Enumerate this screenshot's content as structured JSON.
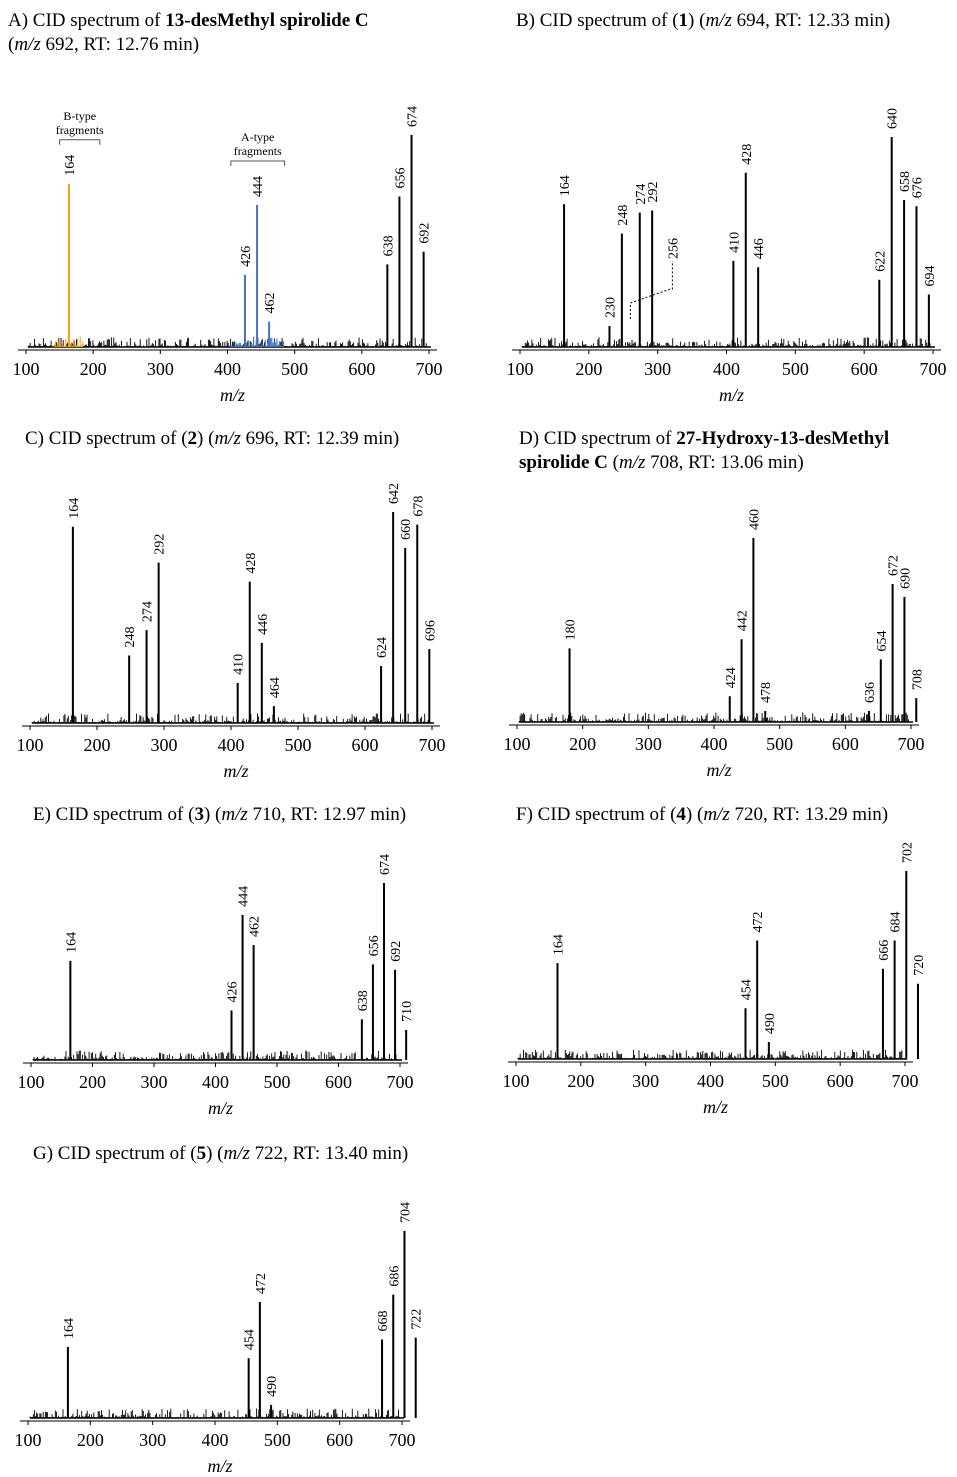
{
  "chart_data": [
    {
      "id": "A",
      "type": "bar",
      "title": {
        "prefix": "A) CID spectrum of ",
        "compound": "13-desMethyl spirolide C",
        "mz_prefix": "(",
        "mz_label": "m/z",
        "mz_rest": " 692, RT: 12.76 min)"
      },
      "xlabel": "m/z",
      "xticks": [
        100,
        200,
        300,
        400,
        500,
        600,
        700
      ],
      "xlim": [
        100,
        700
      ],
      "ylim": [
        0,
        100
      ],
      "peaks": [
        {
          "mz": 164,
          "intensity": 77,
          "label": "164",
          "color": "#f5a31a"
        },
        {
          "mz": 426,
          "intensity": 34,
          "label": "426",
          "color": "#4472c4"
        },
        {
          "mz": 444,
          "intensity": 67,
          "label": "444",
          "color": "#4472c4"
        },
        {
          "mz": 462,
          "intensity": 12,
          "label": "462",
          "color": "#4472c4"
        },
        {
          "mz": 638,
          "intensity": 39,
          "label": "638",
          "color": "#000000"
        },
        {
          "mz": 656,
          "intensity": 71,
          "label": "656",
          "color": "#000000"
        },
        {
          "mz": 674,
          "intensity": 100,
          "label": "674",
          "color": "#000000"
        },
        {
          "mz": 692,
          "intensity": 45,
          "label": "692",
          "color": "#000000"
        }
      ],
      "annotations": [
        {
          "text": "B-type fragments",
          "from": 150,
          "to": 210
        },
        {
          "text": "A-type fragments",
          "from": 405,
          "to": 485
        }
      ]
    },
    {
      "id": "B",
      "type": "bar",
      "title": {
        "prefix": "B) CID spectrum of (",
        "compound": "1",
        "mz_prefix": ") (",
        "mz_label": "m/z",
        "mz_rest": " 694, RT: 12.33 min)"
      },
      "xlabel": "m/z",
      "xticks": [
        100,
        200,
        300,
        400,
        500,
        600,
        700
      ],
      "xlim": [
        100,
        700
      ],
      "ylim": [
        0,
        100
      ],
      "peaks": [
        {
          "mz": 164,
          "intensity": 68,
          "label": "164",
          "color": "#000000"
        },
        {
          "mz": 230,
          "intensity": 10,
          "label": "230",
          "color": "#000000"
        },
        {
          "mz": 248,
          "intensity": 54,
          "label": "248",
          "color": "#000000"
        },
        {
          "mz": 274,
          "intensity": 64,
          "label": "274",
          "color": "#000000"
        },
        {
          "mz": 292,
          "intensity": 65,
          "label": "292",
          "color": "#000000"
        },
        {
          "mz": 410,
          "intensity": 41,
          "label": "410",
          "color": "#000000"
        },
        {
          "mz": 428,
          "intensity": 83,
          "label": "428",
          "color": "#000000"
        },
        {
          "mz": 446,
          "intensity": 38,
          "label": "446",
          "color": "#000000"
        },
        {
          "mz": 622,
          "intensity": 32,
          "label": "622",
          "color": "#000000"
        },
        {
          "mz": 640,
          "intensity": 100,
          "label": "640",
          "color": "#000000"
        },
        {
          "mz": 658,
          "intensity": 70,
          "label": "658",
          "color": "#000000"
        },
        {
          "mz": 676,
          "intensity": 67,
          "label": "676",
          "color": "#000000"
        },
        {
          "mz": 694,
          "intensity": 25,
          "label": "694",
          "color": "#000000"
        }
      ],
      "dashed_label": {
        "text": "256",
        "mz": 256
      }
    },
    {
      "id": "C",
      "type": "bar",
      "title": {
        "prefix": "C) CID spectrum of (",
        "compound": "2",
        "mz_prefix": ") (",
        "mz_label": "m/z",
        "mz_rest": " 696, RT: 12.39 min)"
      },
      "xlabel": "m/z",
      "xticks": [
        100,
        200,
        300,
        400,
        500,
        600,
        700
      ],
      "xlim": [
        100,
        700
      ],
      "ylim": [
        0,
        100
      ],
      "peaks": [
        {
          "mz": 164,
          "intensity": 93,
          "label": "164",
          "color": "#000000"
        },
        {
          "mz": 248,
          "intensity": 32,
          "label": "248",
          "color": "#000000"
        },
        {
          "mz": 274,
          "intensity": 44,
          "label": "274",
          "color": "#000000"
        },
        {
          "mz": 292,
          "intensity": 76,
          "label": "292",
          "color": "#000000"
        },
        {
          "mz": 410,
          "intensity": 19,
          "label": "410",
          "color": "#000000"
        },
        {
          "mz": 428,
          "intensity": 67,
          "label": "428",
          "color": "#000000"
        },
        {
          "mz": 446,
          "intensity": 38,
          "label": "446",
          "color": "#000000"
        },
        {
          "mz": 464,
          "intensity": 8,
          "label": "464",
          "color": "#000000"
        },
        {
          "mz": 624,
          "intensity": 27,
          "label": "624",
          "color": "#000000"
        },
        {
          "mz": 642,
          "intensity": 100,
          "label": "642",
          "color": "#000000"
        },
        {
          "mz": 660,
          "intensity": 83,
          "label": "660",
          "color": "#000000"
        },
        {
          "mz": 678,
          "intensity": 94,
          "label": "678",
          "color": "#000000"
        },
        {
          "mz": 696,
          "intensity": 35,
          "label": "696",
          "color": "#000000"
        }
      ]
    },
    {
      "id": "D",
      "type": "bar",
      "title": {
        "prefix": "D) CID spectrum of ",
        "compound": "27-Hydroxy-13-desMethyl",
        "line2_compound": "spirolide C",
        "mz_prefix": " (",
        "mz_label": "m/z",
        "mz_rest": " 708, RT: 13.06 min)"
      },
      "xlabel": "m/z",
      "xticks": [
        100,
        200,
        300,
        400,
        500,
        600,
        700
      ],
      "xlim": [
        100,
        700
      ],
      "ylim": [
        0,
        100
      ],
      "peaks": [
        {
          "mz": 180,
          "intensity": 40,
          "label": "180",
          "color": "#000000"
        },
        {
          "mz": 424,
          "intensity": 14,
          "label": "424",
          "color": "#000000"
        },
        {
          "mz": 442,
          "intensity": 45,
          "label": "442",
          "color": "#000000"
        },
        {
          "mz": 460,
          "intensity": 100,
          "label": "460",
          "color": "#000000"
        },
        {
          "mz": 478,
          "intensity": 6,
          "label": "478",
          "color": "#000000"
        },
        {
          "mz": 636,
          "intensity": 6,
          "label": "636",
          "color": "#000000"
        },
        {
          "mz": 654,
          "intensity": 34,
          "label": "654",
          "color": "#000000"
        },
        {
          "mz": 672,
          "intensity": 75,
          "label": "672",
          "color": "#000000"
        },
        {
          "mz": 690,
          "intensity": 68,
          "label": "690",
          "color": "#000000"
        },
        {
          "mz": 708,
          "intensity": 13,
          "label": "708",
          "color": "#000000"
        }
      ]
    },
    {
      "id": "E",
      "type": "bar",
      "title": {
        "prefix": "E) CID spectrum of (",
        "compound": "3",
        "mz_prefix": ") (",
        "mz_label": "m/z",
        "mz_rest": " 710, RT: 12.97 min)"
      },
      "xlabel": "m/z",
      "xticks": [
        100,
        200,
        300,
        400,
        500,
        600,
        700
      ],
      "xlim": [
        100,
        700
      ],
      "ylim": [
        0,
        100
      ],
      "peaks": [
        {
          "mz": 164,
          "intensity": 56,
          "label": "164",
          "color": "#000000"
        },
        {
          "mz": 426,
          "intensity": 28,
          "label": "426",
          "color": "#000000"
        },
        {
          "mz": 444,
          "intensity": 82,
          "label": "444",
          "color": "#000000"
        },
        {
          "mz": 462,
          "intensity": 65,
          "label": "462",
          "color": "#000000"
        },
        {
          "mz": 638,
          "intensity": 23,
          "label": "638",
          "color": "#000000"
        },
        {
          "mz": 656,
          "intensity": 54,
          "label": "656",
          "color": "#000000"
        },
        {
          "mz": 674,
          "intensity": 100,
          "label": "674",
          "color": "#000000"
        },
        {
          "mz": 692,
          "intensity": 51,
          "label": "692",
          "color": "#000000"
        },
        {
          "mz": 710,
          "intensity": 17,
          "label": "710",
          "color": "#000000"
        }
      ]
    },
    {
      "id": "F",
      "type": "bar",
      "title": {
        "prefix": "F) CID spectrum of (",
        "compound": "4",
        "mz_prefix": ") (",
        "mz_label": "m/z",
        "mz_rest": " 720, RT: 13.29 min)"
      },
      "xlabel": "m/z",
      "xticks": [
        100,
        200,
        300,
        400,
        500,
        600,
        700
      ],
      "xlim": [
        100,
        700
      ],
      "ylim": [
        0,
        100
      ],
      "peaks": [
        {
          "mz": 164,
          "intensity": 51,
          "label": "164",
          "color": "#000000"
        },
        {
          "mz": 454,
          "intensity": 27,
          "label": "454",
          "color": "#000000"
        },
        {
          "mz": 472,
          "intensity": 63,
          "label": "472",
          "color": "#000000"
        },
        {
          "mz": 490,
          "intensity": 9,
          "label": "490",
          "color": "#000000"
        },
        {
          "mz": 666,
          "intensity": 48,
          "label": "666",
          "color": "#000000"
        },
        {
          "mz": 684,
          "intensity": 63,
          "label": "684",
          "color": "#000000"
        },
        {
          "mz": 702,
          "intensity": 100,
          "label": "702",
          "color": "#000000"
        },
        {
          "mz": 720,
          "intensity": 40,
          "label": "720",
          "color": "#000000"
        }
      ]
    },
    {
      "id": "G",
      "type": "bar",
      "title": {
        "prefix": "G) CID spectrum of (",
        "compound": "5",
        "mz_prefix": ") (",
        "mz_label": "m/z",
        "mz_rest": " 722, RT: 13.40 min)"
      },
      "xlabel": "m/z",
      "xticks": [
        100,
        200,
        300,
        400,
        500,
        600,
        700
      ],
      "xlim": [
        100,
        700
      ],
      "ylim": [
        0,
        100
      ],
      "peaks": [
        {
          "mz": 164,
          "intensity": 38,
          "label": "164",
          "color": "#000000"
        },
        {
          "mz": 454,
          "intensity": 32,
          "label": "454",
          "color": "#000000"
        },
        {
          "mz": 472,
          "intensity": 62,
          "label": "472",
          "color": "#000000"
        },
        {
          "mz": 490,
          "intensity": 7,
          "label": "490",
          "color": "#000000"
        },
        {
          "mz": 668,
          "intensity": 42,
          "label": "668",
          "color": "#000000"
        },
        {
          "mz": 686,
          "intensity": 66,
          "label": "686",
          "color": "#000000"
        },
        {
          "mz": 704,
          "intensity": 100,
          "label": "704",
          "color": "#000000"
        },
        {
          "mz": 722,
          "intensity": 43,
          "label": "722",
          "color": "#000000"
        }
      ]
    }
  ]
}
